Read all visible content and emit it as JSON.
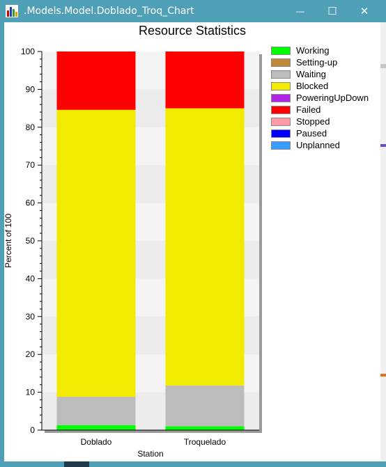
{
  "window": {
    "title": ".Models.Model.Doblado_Troq_Chart",
    "minimize_glyph": "—",
    "maximize_glyph": "☐",
    "close_glyph": "✕"
  },
  "colors": {
    "titlebar": "#4fa0b7",
    "plot_band_light": "#f4f4f4",
    "plot_band_dark": "#ececec"
  },
  "chart_data": {
    "type": "bar",
    "stacked": true,
    "title": "Resource Statistics",
    "xlabel": "Station",
    "ylabel": "Percent of 100",
    "ylim": [
      0,
      100
    ],
    "yticks": [
      0,
      10,
      20,
      30,
      40,
      50,
      60,
      70,
      80,
      90,
      100
    ],
    "categories": [
      "Doblado",
      "Troquelado"
    ],
    "legend_position": "right",
    "series": [
      {
        "name": "Working",
        "color": "#00ff00",
        "values": [
          1.3,
          1.0
        ]
      },
      {
        "name": "Setting-up",
        "color": "#c08a3a",
        "values": [
          0,
          0
        ]
      },
      {
        "name": "Waiting",
        "color": "#bcbcbc",
        "values": [
          7.5,
          10.8
        ]
      },
      {
        "name": "Blocked",
        "color": "#f2ea00",
        "values": [
          75.8,
          73.2
        ]
      },
      {
        "name": "PoweringUpDown",
        "color": "#b026e6",
        "values": [
          0,
          0
        ]
      },
      {
        "name": "Failed",
        "color": "#ff0000",
        "values": [
          15.4,
          15.0
        ]
      },
      {
        "name": "Stopped",
        "color": "#ff9ca8",
        "values": [
          0,
          0
        ]
      },
      {
        "name": "Paused",
        "color": "#0000ff",
        "values": [
          0,
          0
        ]
      },
      {
        "name": "Unplanned",
        "color": "#3a9cff",
        "values": [
          0,
          0
        ]
      }
    ]
  }
}
